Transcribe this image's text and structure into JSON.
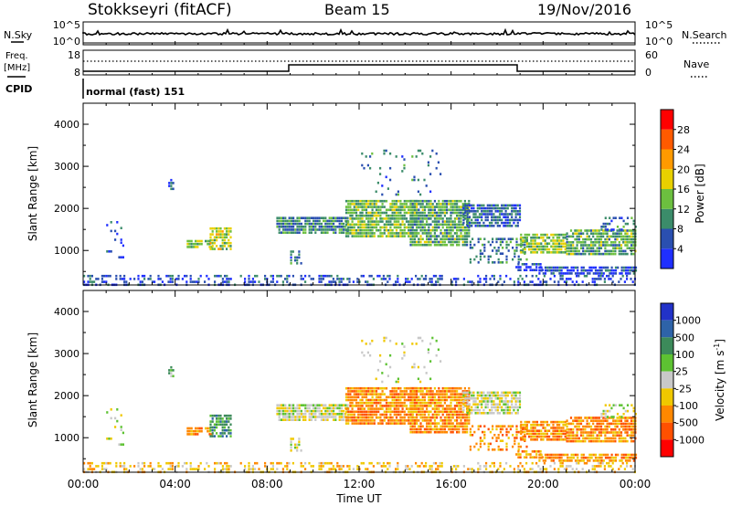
{
  "header": {
    "station": "Stokkseyri (fitACF)",
    "beam": "Beam 15",
    "date": "19/Nov/2016"
  },
  "panels": {
    "nsky": {
      "label": "N.Sky",
      "left_ticks": [
        "10^5",
        "10^0"
      ],
      "right_ticks": [
        "10^5",
        "10^0"
      ],
      "right_label": "N.Search"
    },
    "freq": {
      "label_line1": "Freq.",
      "label_line2": "[MHz]",
      "left_ticks": [
        "18",
        "8"
      ],
      "right_ticks": [
        "60",
        "0"
      ],
      "right_label": "Nave",
      "cpid_label": "CPID",
      "cpid_text": "normal (fast) 151"
    }
  },
  "colors": {
    "power_scale": [
      "#1f2fff",
      "#2a4fb0",
      "#3b8c6a",
      "#6cbf3f",
      "#e8d000",
      "#ff9a00",
      "#ff5a00",
      "#ff0000"
    ],
    "velocity_scale": [
      "#2232c8",
      "#2e63a8",
      "#3c8a5a",
      "#5dc232",
      "#c8c8c8",
      "#f0c800",
      "#ff8800",
      "#ff5000",
      "#ff0000"
    ]
  },
  "chart_data": [
    {
      "type": "heatmap",
      "name": "power",
      "xlabel": "Time UT",
      "ylabel": "Slant Range [km]",
      "xlim": [
        0,
        24
      ],
      "ylim": [
        180,
        4500
      ],
      "x_tick_labels": [
        "00:00",
        "04:00",
        "08:00",
        "12:00",
        "16:00",
        "20:00",
        "00:00"
      ],
      "y_ticks": [
        1000,
        2000,
        3000,
        4000
      ],
      "colorbar": {
        "label": "Power [dB]",
        "min": 0,
        "max": 32,
        "tick_values": [
          4,
          8,
          12,
          16,
          20,
          24,
          28
        ]
      },
      "regions": [
        {
          "t0": 0.0,
          "t1": 24.0,
          "r0": 200,
          "r1": 420,
          "level": 5,
          "density": 0.35
        },
        {
          "t0": 1.0,
          "t1": 1.7,
          "r0": 700,
          "r1": 1700,
          "level": 4,
          "density": 0.12
        },
        {
          "t0": 3.7,
          "t1": 3.9,
          "r0": 2450,
          "r1": 2700,
          "level": 7,
          "density": 0.6
        },
        {
          "t0": 4.5,
          "t1": 5.6,
          "r0": 1050,
          "r1": 1250,
          "level": 14,
          "density": 0.7
        },
        {
          "t0": 5.5,
          "t1": 6.4,
          "r0": 1050,
          "r1": 1550,
          "level": 16,
          "density": 0.75
        },
        {
          "t0": 8.4,
          "t1": 11.5,
          "r0": 1400,
          "r1": 1800,
          "level": 9,
          "density": 0.85
        },
        {
          "t0": 9.0,
          "t1": 9.5,
          "r0": 700,
          "r1": 1000,
          "level": 8,
          "density": 0.5
        },
        {
          "t0": 11.4,
          "t1": 14.5,
          "r0": 1300,
          "r1": 2200,
          "level": 13,
          "density": 0.85
        },
        {
          "t0": 12.0,
          "t1": 15.5,
          "r0": 2300,
          "r1": 3400,
          "level": 8,
          "density": 0.08
        },
        {
          "t0": 14.2,
          "t1": 16.8,
          "r0": 1100,
          "r1": 2200,
          "level": 12,
          "density": 0.85
        },
        {
          "t0": 16.5,
          "t1": 19.0,
          "r0": 1550,
          "r1": 2100,
          "level": 7,
          "density": 0.75
        },
        {
          "t0": 16.8,
          "t1": 19.3,
          "r0": 700,
          "r1": 1300,
          "level": 9,
          "density": 0.4
        },
        {
          "t0": 18.8,
          "t1": 20.0,
          "r0": 550,
          "r1": 700,
          "level": 5,
          "density": 0.7
        },
        {
          "t0": 19.0,
          "t1": 21.0,
          "r0": 950,
          "r1": 1400,
          "level": 15,
          "density": 0.8
        },
        {
          "t0": 19.8,
          "t1": 24.0,
          "r0": 480,
          "r1": 620,
          "level": 5,
          "density": 0.8
        },
        {
          "t0": 21.0,
          "t1": 24.0,
          "r0": 900,
          "r1": 1500,
          "level": 12,
          "density": 0.8
        },
        {
          "t0": 22.5,
          "t1": 24.0,
          "r0": 1500,
          "r1": 1800,
          "level": 8,
          "density": 0.4
        }
      ]
    },
    {
      "type": "heatmap",
      "name": "velocity",
      "xlabel": "Time UT",
      "ylabel": "Slant Range [km]",
      "xlim": [
        0,
        24
      ],
      "ylim": [
        180,
        4500
      ],
      "x_tick_labels": [
        "00:00",
        "04:00",
        "08:00",
        "12:00",
        "16:00",
        "20:00",
        "00:00"
      ],
      "y_ticks": [
        1000,
        2000,
        3000,
        4000
      ],
      "colorbar": {
        "label": "Velocity [m s^-1]",
        "tick_labels": [
          "1000",
          "500",
          "100",
          "25",
          "-25",
          "-100",
          "-500",
          "-1000"
        ]
      },
      "regions": [
        {
          "t0": 0.0,
          "t1": 24.0,
          "r0": 200,
          "r1": 420,
          "level": 5,
          "density": 0.35
        },
        {
          "t0": 1.0,
          "t1": 1.7,
          "r0": 700,
          "r1": 1700,
          "level": 4,
          "density": 0.12
        },
        {
          "t0": 3.7,
          "t1": 3.9,
          "r0": 2450,
          "r1": 2700,
          "level": 3,
          "density": 0.6
        },
        {
          "t0": 4.5,
          "t1": 5.6,
          "r0": 1050,
          "r1": 1250,
          "level": 6,
          "density": 0.7
        },
        {
          "t0": 5.5,
          "t1": 6.4,
          "r0": 1050,
          "r1": 1550,
          "level": 2,
          "density": 0.75
        },
        {
          "t0": 8.4,
          "t1": 11.5,
          "r0": 1400,
          "r1": 1800,
          "level": 4,
          "density": 0.85
        },
        {
          "t0": 9.0,
          "t1": 9.5,
          "r0": 700,
          "r1": 1000,
          "level": 4,
          "density": 0.5
        },
        {
          "t0": 11.4,
          "t1": 14.5,
          "r0": 1300,
          "r1": 2200,
          "level": 6,
          "density": 0.85
        },
        {
          "t0": 12.0,
          "t1": 15.5,
          "r0": 2300,
          "r1": 3400,
          "level": 4,
          "density": 0.08
        },
        {
          "t0": 14.2,
          "t1": 16.8,
          "r0": 1100,
          "r1": 2200,
          "level": 6,
          "density": 0.85
        },
        {
          "t0": 16.5,
          "t1": 19.0,
          "r0": 1550,
          "r1": 2100,
          "level": 4,
          "density": 0.75
        },
        {
          "t0": 16.8,
          "t1": 19.3,
          "r0": 700,
          "r1": 1300,
          "level": 6,
          "density": 0.4
        },
        {
          "t0": 18.8,
          "t1": 20.0,
          "r0": 550,
          "r1": 700,
          "level": 6,
          "density": 0.7
        },
        {
          "t0": 19.0,
          "t1": 21.0,
          "r0": 950,
          "r1": 1400,
          "level": 6,
          "density": 0.8
        },
        {
          "t0": 19.8,
          "t1": 24.0,
          "r0": 480,
          "r1": 620,
          "level": 6,
          "density": 0.8
        },
        {
          "t0": 21.0,
          "t1": 24.0,
          "r0": 900,
          "r1": 1500,
          "level": 6,
          "density": 0.8
        },
        {
          "t0": 22.5,
          "t1": 24.0,
          "r0": 1500,
          "r1": 1800,
          "level": 4,
          "density": 0.4
        }
      ]
    }
  ]
}
